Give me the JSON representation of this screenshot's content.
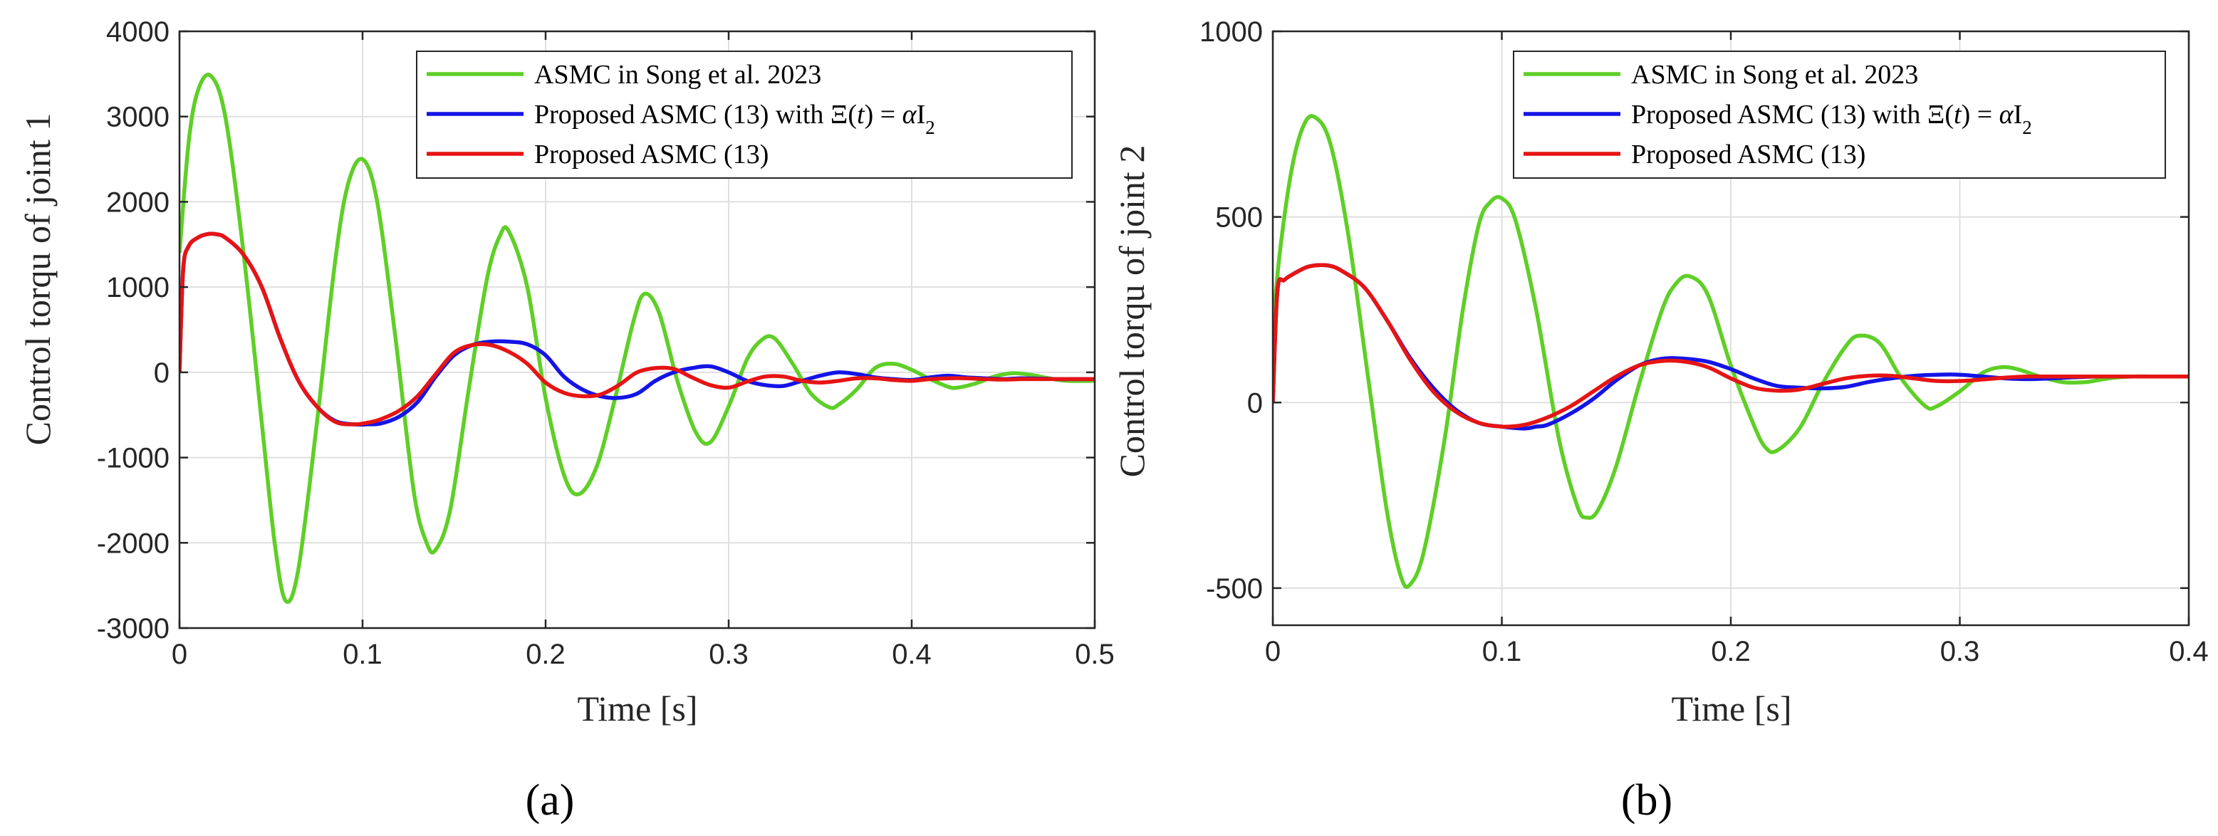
{
  "chart_data": [
    {
      "type": "line",
      "panel_label": "(a)",
      "xlabel": "Time [s]",
      "ylabel": "Control torqu of joint 1",
      "xlim": [
        0,
        0.5
      ],
      "ylim": [
        -3000,
        4000
      ],
      "xticks": [
        0,
        0.1,
        0.2,
        0.3,
        0.4,
        0.5
      ],
      "xtick_labels": [
        "0",
        "0.1",
        "0.2",
        "0.3",
        "0.4",
        "0.5"
      ],
      "yticks": [
        -3000,
        -2000,
        -1000,
        0,
        1000,
        2000,
        3000,
        4000
      ],
      "ytick_labels": [
        "-3000",
        "-2000",
        "-1000",
        "0",
        "1000",
        "2000",
        "3000",
        "4000"
      ],
      "grid": true,
      "legend_position": "top-right",
      "series": [
        {
          "name": "ASMC in Song et al. 2023",
          "color": "#5fcf27",
          "x": [
            0,
            0.005,
            0.01,
            0.017,
            0.025,
            0.035,
            0.045,
            0.052,
            0.058,
            0.065,
            0.075,
            0.085,
            0.092,
            0.1,
            0.108,
            0.118,
            0.128,
            0.135,
            0.14,
            0.148,
            0.158,
            0.168,
            0.175,
            0.18,
            0.19,
            0.2,
            0.21,
            0.218,
            0.228,
            0.238,
            0.248,
            0.254,
            0.262,
            0.272,
            0.282,
            0.29,
            0.3,
            0.31,
            0.318,
            0.325,
            0.335,
            0.345,
            0.355,
            0.36,
            0.37,
            0.38,
            0.39,
            0.4,
            0.41,
            0.42,
            0.425,
            0.435,
            0.445,
            0.455,
            0.465,
            0.475,
            0.485,
            0.5
          ],
          "y": [
            1400,
            2700,
            3300,
            3480,
            3000,
            1400,
            -600,
            -2000,
            -2680,
            -2300,
            -600,
            1300,
            2200,
            2500,
            2000,
            400,
            -1400,
            -2000,
            -2080,
            -1600,
            -200,
            1100,
            1600,
            1650,
            1000,
            -300,
            -1200,
            -1430,
            -1100,
            -300,
            600,
            920,
            700,
            -100,
            -700,
            -820,
            -400,
            150,
            380,
            400,
            100,
            -250,
            -410,
            -380,
            -200,
            50,
            100,
            30,
            -80,
            -170,
            -180,
            -130,
            -50,
            -10,
            -30,
            -70,
            -100,
            -100
          ]
        },
        {
          "name": "Proposed ASMC (13) with Ξ(t) = αI₂",
          "color": "#1414e6",
          "x": [
            0,
            0.002,
            0.005,
            0.01,
            0.015,
            0.02,
            0.025,
            0.035,
            0.045,
            0.055,
            0.065,
            0.075,
            0.085,
            0.095,
            0.103,
            0.11,
            0.12,
            0.13,
            0.14,
            0.15,
            0.16,
            0.17,
            0.18,
            0.19,
            0.2,
            0.21,
            0.22,
            0.23,
            0.24,
            0.25,
            0.26,
            0.27,
            0.28,
            0.29,
            0.3,
            0.31,
            0.32,
            0.33,
            0.34,
            0.35,
            0.36,
            0.37,
            0.38,
            0.39,
            0.4,
            0.41,
            0.42,
            0.43,
            0.44,
            0.45,
            0.46,
            0.47,
            0.48,
            0.49,
            0.5
          ],
          "y": [
            0,
            1200,
            1480,
            1580,
            1620,
            1620,
            1580,
            1380,
            1000,
            400,
            -100,
            -400,
            -570,
            -610,
            -610,
            -600,
            -520,
            -350,
            -50,
            200,
            320,
            360,
            360,
            330,
            200,
            -50,
            -200,
            -280,
            -300,
            -250,
            -100,
            0,
            50,
            70,
            0,
            -100,
            -150,
            -160,
            -100,
            -40,
            0,
            -20,
            -60,
            -80,
            -90,
            -60,
            -40,
            -60,
            -70,
            -80,
            -70,
            -75,
            -80,
            -80,
            -80
          ]
        },
        {
          "name": "Proposed ASMC (13)",
          "color": "#e61414",
          "x": [
            0,
            0.002,
            0.005,
            0.01,
            0.015,
            0.02,
            0.025,
            0.035,
            0.045,
            0.055,
            0.065,
            0.075,
            0.085,
            0.095,
            0.103,
            0.11,
            0.12,
            0.13,
            0.14,
            0.15,
            0.16,
            0.17,
            0.18,
            0.19,
            0.2,
            0.21,
            0.22,
            0.23,
            0.24,
            0.25,
            0.26,
            0.27,
            0.28,
            0.29,
            0.3,
            0.31,
            0.32,
            0.33,
            0.34,
            0.35,
            0.36,
            0.37,
            0.38,
            0.39,
            0.4,
            0.41,
            0.42,
            0.43,
            0.44,
            0.45,
            0.46,
            0.47,
            0.48,
            0.49,
            0.5
          ],
          "y": [
            0,
            1200,
            1480,
            1580,
            1620,
            1620,
            1580,
            1380,
            1000,
            400,
            -100,
            -400,
            -580,
            -610,
            -590,
            -550,
            -450,
            -280,
            -20,
            230,
            320,
            320,
            240,
            100,
            -120,
            -240,
            -280,
            -260,
            -150,
            0,
            50,
            40,
            -60,
            -150,
            -180,
            -110,
            -50,
            -50,
            -100,
            -120,
            -100,
            -70,
            -70,
            -90,
            -100,
            -80,
            -70,
            -70,
            -80,
            -85,
            -80,
            -80,
            -80,
            -80,
            -80
          ]
        }
      ]
    },
    {
      "type": "line",
      "panel_label": "(b)",
      "xlabel": "Time [s]",
      "ylabel": "Control torqu of joint 2",
      "xlim": [
        0,
        0.4
      ],
      "ylim": [
        -600,
        1000
      ],
      "xticks": [
        0,
        0.1,
        0.2,
        0.3,
        0.4
      ],
      "xtick_labels": [
        "0",
        "0.1",
        "0.2",
        "0.3",
        "0.4"
      ],
      "yticks": [
        -500,
        0,
        500,
        1000
      ],
      "ytick_labels": [
        "-500",
        "0",
        "500",
        "1000"
      ],
      "grid": true,
      "legend_position": "top-right",
      "series": [
        {
          "name": "ASMC in Song et al. 2023",
          "color": "#5fcf27",
          "x": [
            0,
            0.003,
            0.008,
            0.013,
            0.018,
            0.025,
            0.033,
            0.042,
            0.05,
            0.056,
            0.06,
            0.066,
            0.075,
            0.083,
            0.09,
            0.095,
            0.1,
            0.106,
            0.115,
            0.125,
            0.133,
            0.137,
            0.142,
            0.15,
            0.16,
            0.17,
            0.176,
            0.182,
            0.19,
            0.2,
            0.21,
            0.215,
            0.22,
            0.23,
            0.24,
            0.25,
            0.256,
            0.265,
            0.275,
            0.285,
            0.29,
            0.3,
            0.31,
            0.318,
            0.325,
            0.335,
            0.345,
            0.355,
            0.365,
            0.375,
            0.385,
            0.4
          ],
          "y": [
            200,
            400,
            620,
            740,
            770,
            700,
            450,
            50,
            -300,
            -470,
            -490,
            -400,
            -100,
            250,
            480,
            540,
            550,
            490,
            250,
            -100,
            -280,
            -310,
            -290,
            -170,
            50,
            250,
            320,
            340,
            290,
            100,
            -60,
            -120,
            -130,
            -70,
            50,
            150,
            180,
            160,
            60,
            -10,
            -10,
            30,
            80,
            95,
            90,
            70,
            55,
            55,
            65,
            70,
            70,
            70
          ]
        },
        {
          "name": "Proposed ASMC (13) with Ξ(t) = αI₂",
          "color": "#1414e6",
          "x": [
            0,
            0.002,
            0.005,
            0.01,
            0.015,
            0.02,
            0.025,
            0.03,
            0.04,
            0.05,
            0.06,
            0.07,
            0.08,
            0.09,
            0.1,
            0.11,
            0.115,
            0.12,
            0.13,
            0.14,
            0.15,
            0.16,
            0.17,
            0.18,
            0.19,
            0.2,
            0.21,
            0.22,
            0.23,
            0.24,
            0.25,
            0.26,
            0.27,
            0.28,
            0.29,
            0.3,
            0.31,
            0.32,
            0.33,
            0.34,
            0.35,
            0.36,
            0.37,
            0.38,
            0.39,
            0.4
          ],
          "y": [
            0,
            300,
            330,
            350,
            365,
            370,
            368,
            355,
            310,
            220,
            120,
            40,
            -20,
            -55,
            -65,
            -70,
            -65,
            -60,
            -30,
            10,
            60,
            100,
            118,
            118,
            110,
            90,
            65,
            45,
            40,
            38,
            42,
            55,
            65,
            72,
            75,
            75,
            70,
            65,
            63,
            65,
            68,
            70,
            70,
            70,
            70,
            70
          ]
        },
        {
          "name": "Proposed ASMC (13)",
          "color": "#e61414",
          "x": [
            0,
            0.002,
            0.005,
            0.01,
            0.015,
            0.02,
            0.025,
            0.03,
            0.04,
            0.05,
            0.06,
            0.07,
            0.08,
            0.09,
            0.1,
            0.11,
            0.12,
            0.13,
            0.14,
            0.15,
            0.16,
            0.17,
            0.18,
            0.19,
            0.2,
            0.21,
            0.22,
            0.23,
            0.24,
            0.25,
            0.26,
            0.27,
            0.28,
            0.29,
            0.3,
            0.31,
            0.32,
            0.33,
            0.34,
            0.35,
            0.36,
            0.37,
            0.38,
            0.39,
            0.4
          ],
          "y": [
            0,
            300,
            330,
            350,
            365,
            370,
            368,
            355,
            310,
            220,
            115,
            30,
            -25,
            -55,
            -65,
            -60,
            -40,
            -10,
            30,
            70,
            100,
            112,
            110,
            95,
            65,
            40,
            32,
            35,
            50,
            65,
            72,
            72,
            65,
            58,
            58,
            62,
            67,
            70,
            70,
            70,
            70,
            70,
            70,
            70,
            70
          ]
        }
      ]
    }
  ]
}
